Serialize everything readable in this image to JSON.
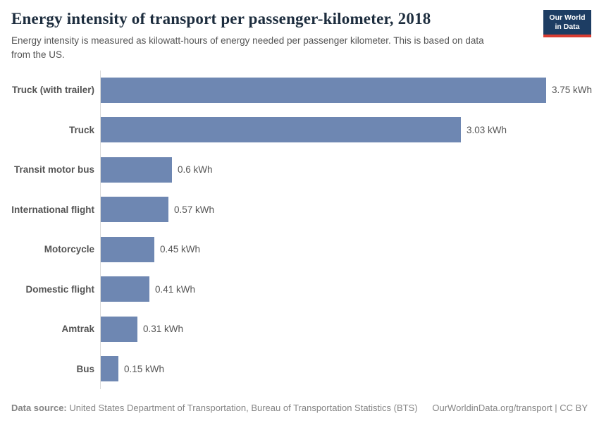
{
  "header": {
    "title": "Energy intensity of transport per passenger-kilometer, 2018",
    "subtitle": "Energy intensity is measured as kilowatt-hours of energy needed per passenger kilometer. This is based on data from the US.",
    "logo": {
      "line1": "Our World",
      "line2": "in Data"
    }
  },
  "chart_data": {
    "type": "bar",
    "orientation": "horizontal",
    "categories": [
      "Truck (with trailer)",
      "Truck",
      "Transit motor bus",
      "International flight",
      "Motorcycle",
      "Domestic flight",
      "Amtrak",
      "Bus"
    ],
    "values": [
      3.75,
      3.03,
      0.6,
      0.57,
      0.45,
      0.41,
      0.31,
      0.15
    ],
    "value_labels": [
      "3.75 kWh",
      "3.03 kWh",
      "0.6 kWh",
      "0.57 kWh",
      "0.45 kWh",
      "0.41 kWh",
      "0.31 kWh",
      "0.15 kWh"
    ],
    "unit": "kWh",
    "xlim": [
      0,
      3.75
    ],
    "grid": false,
    "legend": "none",
    "bar_color": "#6e87b2"
  },
  "footer": {
    "source_label": "Data source:",
    "source_text": " United States Department of Transportation, Bureau of Transportation Statistics (BTS)",
    "link_text": "OurWorldinData.org/transport | CC BY"
  },
  "colors": {
    "accent": "#6e87b2",
    "logo_bg": "#1d3d63",
    "logo_stripe": "#d93d32",
    "axis_line": "#dadada"
  }
}
